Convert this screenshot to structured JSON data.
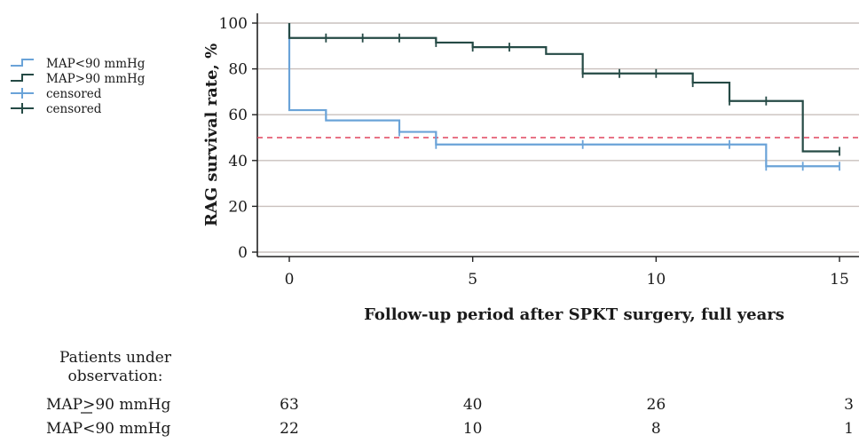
{
  "chart_data": {
    "type": "line",
    "subtype": "kaplan-meier step",
    "xlabel": "Follow-up period after SPKT surgery, full years",
    "ylabel": "RAG survival rate, %",
    "xlim": [
      0,
      15
    ],
    "ylim": [
      0,
      100
    ],
    "x_ticks": [
      "0",
      "5",
      "10",
      "15"
    ],
    "y_ticks": [
      "0",
      "20",
      "40",
      "60",
      "80",
      "100"
    ],
    "grid": "horizontal",
    "reference_line": {
      "y": 50,
      "style": "dashed",
      "color": "#e0455f"
    },
    "legend_position": "left",
    "legend": [
      {
        "label": "MAP<90 mmHg",
        "kind": "step",
        "color": "#6aa3d8"
      },
      {
        "label": "MAP>90 mmHg",
        "kind": "step",
        "color": "#254a45"
      },
      {
        "label": "censored",
        "kind": "censor",
        "color": "#6aa3d8"
      },
      {
        "label": "censored",
        "kind": "censor",
        "color": "#254a45"
      }
    ],
    "series": [
      {
        "name": "MAP<90 mmHg",
        "color": "#6aa3d8",
        "steps": [
          {
            "x": 0,
            "y": 100
          },
          {
            "x": 0,
            "y": 62
          },
          {
            "x": 1,
            "y": 57.5
          },
          {
            "x": 3,
            "y": 52.5
          },
          {
            "x": 4,
            "y": 47
          },
          {
            "x": 13,
            "y": 37.5
          },
          {
            "x": 15,
            "y": 37.5
          }
        ],
        "censored": [
          {
            "x": 3,
            "y": 52.5
          },
          {
            "x": 4,
            "y": 47
          },
          {
            "x": 8,
            "y": 47
          },
          {
            "x": 12,
            "y": 47
          },
          {
            "x": 13,
            "y": 37.5
          },
          {
            "x": 14,
            "y": 37.5
          },
          {
            "x": 15,
            "y": 37.5
          }
        ]
      },
      {
        "name": "MAP>90 mmHg",
        "color": "#254a45",
        "steps": [
          {
            "x": 0,
            "y": 100
          },
          {
            "x": 0,
            "y": 93.5
          },
          {
            "x": 4,
            "y": 91.5
          },
          {
            "x": 5,
            "y": 89.5
          },
          {
            "x": 7,
            "y": 86.5
          },
          {
            "x": 8,
            "y": 78
          },
          {
            "x": 11,
            "y": 74
          },
          {
            "x": 12,
            "y": 66
          },
          {
            "x": 14,
            "y": 44
          },
          {
            "x": 15,
            "y": 44
          }
        ],
        "censored": [
          {
            "x": 1,
            "y": 93.5
          },
          {
            "x": 2,
            "y": 93.5
          },
          {
            "x": 3,
            "y": 93.5
          },
          {
            "x": 4,
            "y": 91.5
          },
          {
            "x": 5,
            "y": 89.5
          },
          {
            "x": 6,
            "y": 89.5
          },
          {
            "x": 8,
            "y": 78
          },
          {
            "x": 9,
            "y": 78
          },
          {
            "x": 10,
            "y": 78
          },
          {
            "x": 11,
            "y": 74
          },
          {
            "x": 12,
            "y": 66
          },
          {
            "x": 13,
            "y": 66
          },
          {
            "x": 15,
            "y": 44
          }
        ]
      }
    ],
    "risk_table": {
      "heading_line1": "Patients under",
      "heading_line2": "observation:",
      "x": [
        0,
        5,
        10,
        15
      ],
      "rows": [
        {
          "label": "MAP>90 mmHg",
          "counts": [
            "63",
            "40",
            "26",
            "3"
          ]
        },
        {
          "label": "MAP<90 mmHg",
          "counts": [
            "22",
            "10",
            "8",
            "1"
          ]
        }
      ]
    }
  }
}
